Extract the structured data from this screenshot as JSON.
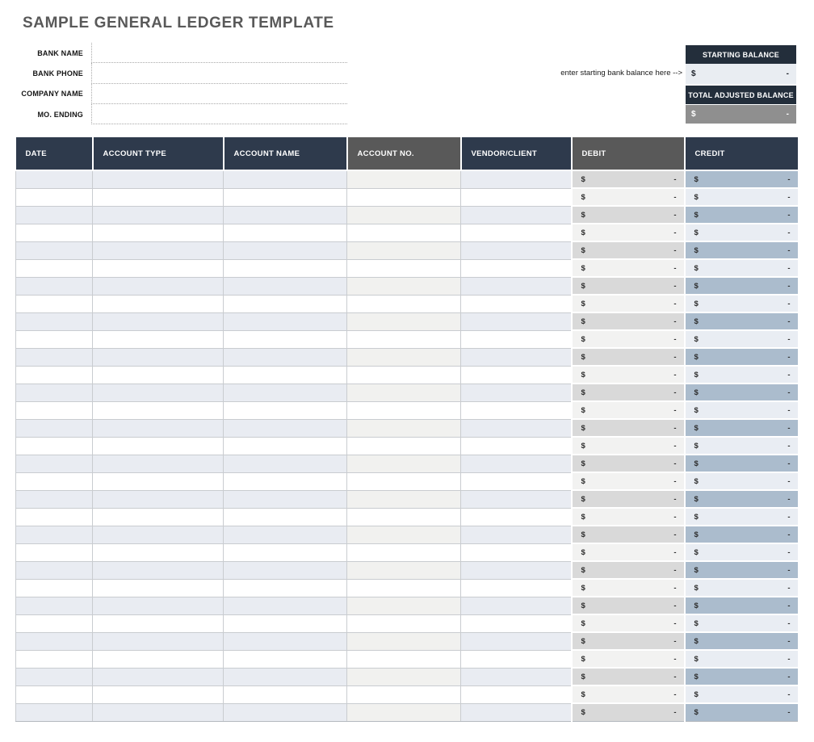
{
  "page": {
    "title": "SAMPLE GENERAL LEDGER TEMPLATE"
  },
  "form": {
    "fields": [
      {
        "label": "BANK NAME",
        "value": ""
      },
      {
        "label": "BANK PHONE",
        "value": ""
      },
      {
        "label": "COMPANY NAME",
        "value": ""
      },
      {
        "label": "MO. ENDING",
        "value": ""
      }
    ]
  },
  "balance": {
    "hint": "enter starting bank balance here -->",
    "starting": {
      "label": "STARTING BALANCE",
      "currency": "$",
      "value": "-"
    },
    "adjusted": {
      "label": "TOTAL ADJUSTED BALANCE",
      "currency": "$",
      "value": "-"
    }
  },
  "table": {
    "columns": [
      {
        "key": "date",
        "label": "DATE",
        "theme": "navy",
        "type": "text"
      },
      {
        "key": "account-type",
        "label": "ACCOUNT TYPE",
        "theme": "navy",
        "type": "text"
      },
      {
        "key": "account-name",
        "label": "ACCOUNT NAME",
        "theme": "navy",
        "type": "text"
      },
      {
        "key": "account-no",
        "label": "ACCOUNT NO.",
        "theme": "gray",
        "type": "text"
      },
      {
        "key": "vendor-client",
        "label": "VENDOR/CLIENT",
        "theme": "navy",
        "type": "text"
      },
      {
        "key": "debit",
        "label": "DEBIT",
        "theme": "gray",
        "type": "money"
      },
      {
        "key": "credit",
        "label": "CREDIT",
        "theme": "navy",
        "type": "money"
      }
    ],
    "row_count": 31,
    "cell_placeholder": {
      "currency": "$",
      "value": "-"
    }
  },
  "colors": {
    "title_gray": "#595959",
    "navy_header": "#2e3a4c",
    "dark_navy_header": "#232e3b",
    "gray_header": "#595959",
    "row_blue_shaded": "#e9ecf2",
    "row_gray_shaded": "#f1f1ef",
    "debit_shaded": "#d9d9d9",
    "debit_plain": "#f2f2f1",
    "credit_shaded": "#abbccd",
    "credit_plain": "#e9edf3",
    "starting_balance_fill": "#e9edf2",
    "adjusted_balance_fill": "#8f8f8f"
  }
}
